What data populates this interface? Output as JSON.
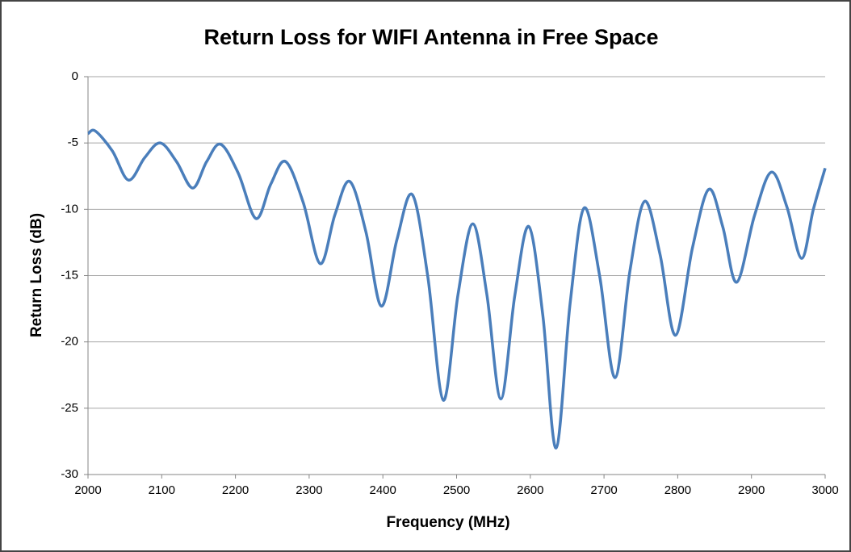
{
  "chart_data": {
    "type": "line",
    "title": "Return Loss for WIFI Antenna in Free Space",
    "x_label": "Frequency  (MHz)",
    "y_label": "Return Loss (dB)",
    "x": [
      2000,
      2010,
      2033,
      2055,
      2077,
      2098,
      2120,
      2142,
      2161,
      2180,
      2204,
      2228,
      2248,
      2268,
      2292,
      2315,
      2335,
      2355,
      2377,
      2398,
      2419,
      2440,
      2461,
      2482,
      2502,
      2522,
      2541,
      2560,
      2579,
      2598,
      2617,
      2635,
      2654,
      2673,
      2694,
      2715,
      2735,
      2755,
      2776,
      2797,
      2820,
      2842,
      2861,
      2880,
      2904,
      2927,
      2948,
      2968,
      2984,
      3000
    ],
    "values": [
      -4.3,
      -4.1,
      -5.6,
      -7.8,
      -6.1,
      -5.0,
      -6.4,
      -8.4,
      -6.4,
      -5.1,
      -7.3,
      -10.7,
      -8.1,
      -6.4,
      -9.5,
      -14.1,
      -10.4,
      -7.9,
      -11.7,
      -17.3,
      -12.3,
      -8.9,
      -15.1,
      -24.4,
      -16.4,
      -11.1,
      -16.4,
      -24.3,
      -16.5,
      -11.3,
      -18.0,
      -28.0,
      -17.1,
      -9.9,
      -15.0,
      -22.7,
      -14.7,
      -9.4,
      -13.4,
      -19.5,
      -12.9,
      -8.5,
      -11.3,
      -15.5,
      -10.5,
      -7.2,
      -9.8,
      -13.7,
      -10.0,
      -6.9
    ],
    "color": "#4a7ebb",
    "xlim": [
      2000,
      3000
    ],
    "xticks": [
      2000,
      2100,
      2200,
      2300,
      2400,
      2500,
      2600,
      2700,
      2800,
      2900,
      3000
    ],
    "ylim": [
      -30,
      0
    ],
    "yticks": [
      -30,
      -25,
      -20,
      -15,
      -10,
      -5,
      0
    ],
    "grid": true
  }
}
